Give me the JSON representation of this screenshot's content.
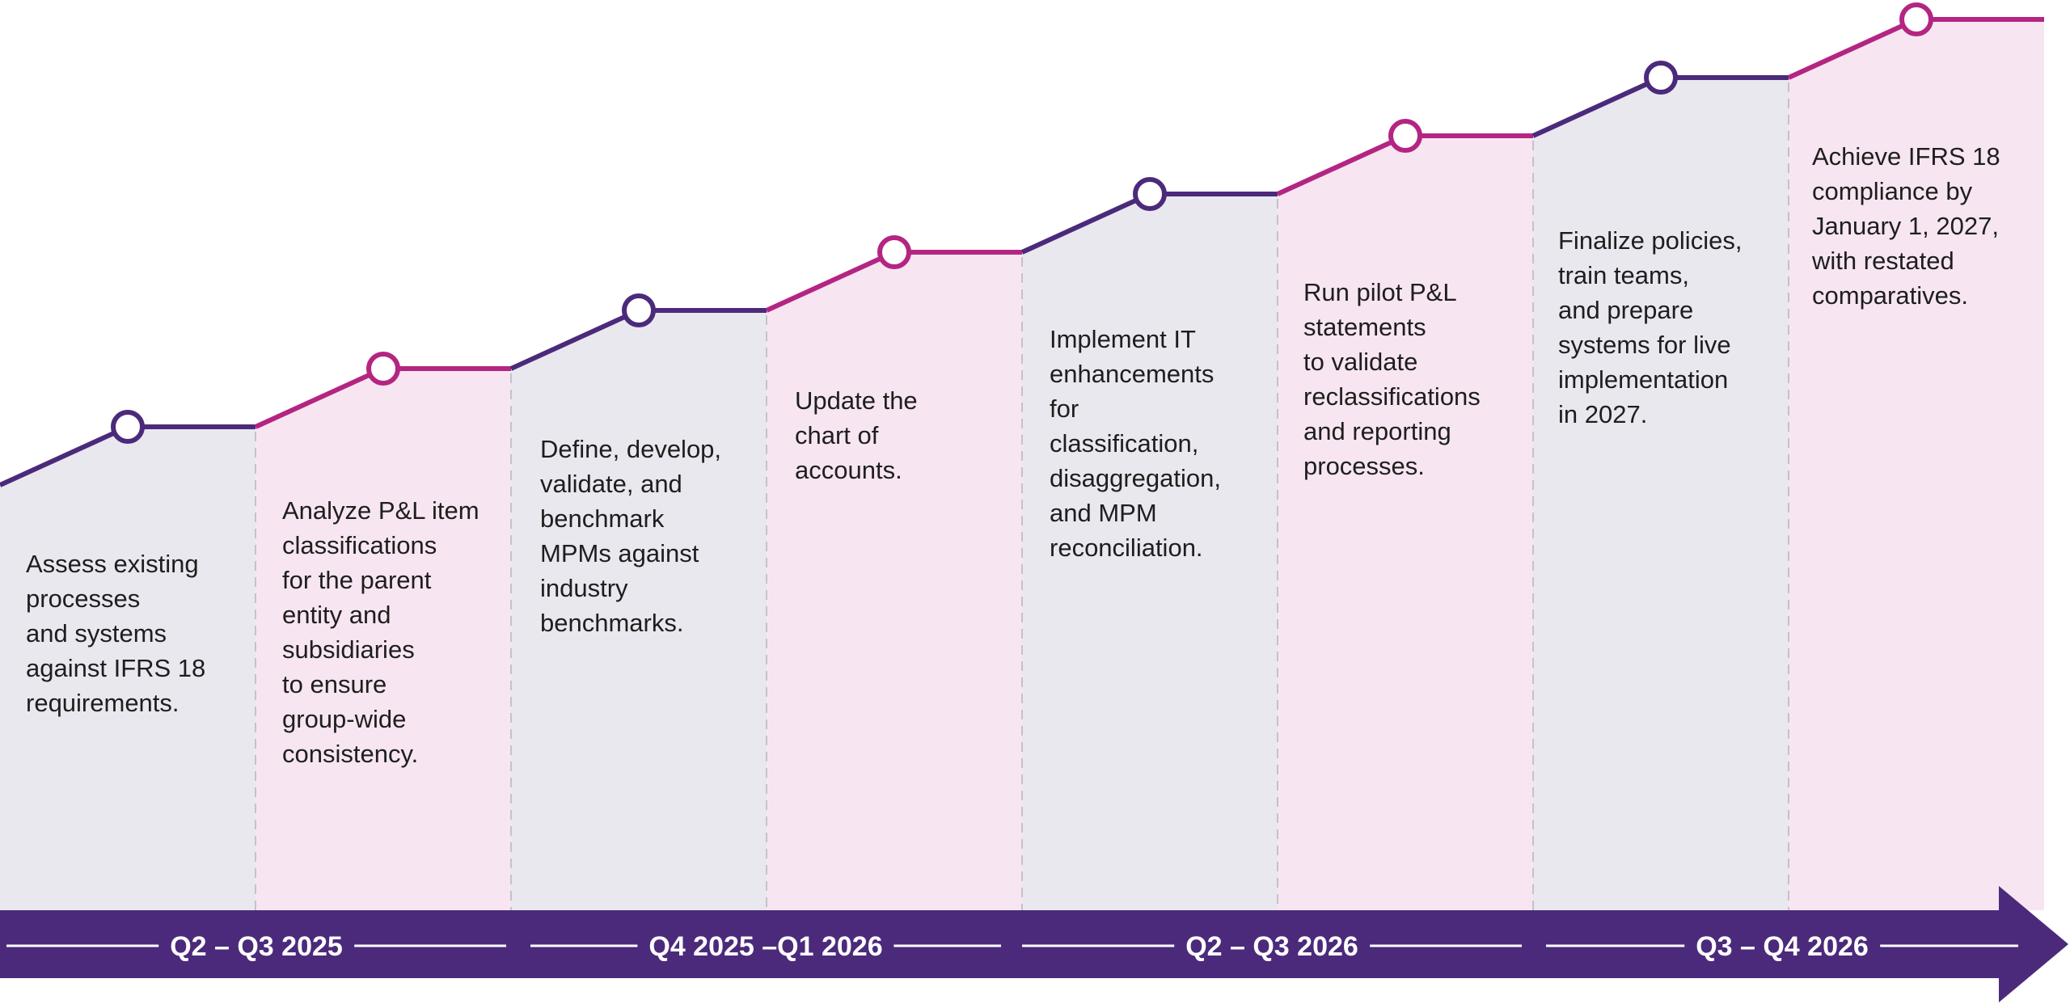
{
  "colors": {
    "purple": "#4b2a7b",
    "magenta": "#b42582",
    "panel_grey": "#e9e8ef",
    "panel_pink": "#f7e6f1",
    "divider": "#c4c2c8",
    "text": "#1e1e1e"
  },
  "steps": [
    {
      "text": "Assess existing\nprocesses\nand systems\nagainst IFRS 18\nrequirements.",
      "color": "purple",
      "panel": "panel_grey"
    },
    {
      "text": "Analyze P&L item\nclassifications\nfor the parent\nentity and\nsubsidiaries\nto ensure\ngroup-wide\nconsistency.",
      "color": "magenta",
      "panel": "panel_pink"
    },
    {
      "text": "Define, develop,\nvalidate, and\nbenchmark\nMPMs against\nindustry\nbenchmarks.",
      "color": "purple",
      "panel": "panel_grey"
    },
    {
      "text": "Update the\nchart of\naccounts.",
      "color": "magenta",
      "panel": "panel_pink"
    },
    {
      "text": "Implement IT\nenhancements\nfor\nclassification,\ndisaggregation,\nand MPM\nreconciliation.",
      "color": "purple",
      "panel": "panel_grey"
    },
    {
      "text": "Run pilot P&L\nstatements\nto validate\nreclassifications\nand reporting\nprocesses.",
      "color": "magenta",
      "panel": "panel_pink"
    },
    {
      "text": "Finalize policies,\ntrain teams,\nand prepare\nsystems for live\nimplementation\nin 2027.",
      "color": "purple",
      "panel": "panel_grey"
    },
    {
      "text": "Achieve IFRS 18\ncompliance by\nJanuary 1, 2027,\nwith restated\ncomparatives.",
      "color": "magenta",
      "panel": "panel_pink"
    }
  ],
  "periods": [
    "Q2 – Q3 2025",
    "Q4 2025 –Q1 2026",
    "Q2 – Q3 2026",
    "Q3 – Q4 2026"
  ]
}
